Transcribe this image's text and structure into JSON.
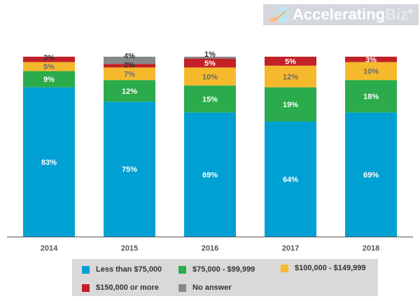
{
  "logo": {
    "text": "Accelerating",
    "text2": "Biz",
    "mark": "®"
  },
  "chart_data": {
    "type": "bar",
    "stacked": true,
    "categories": [
      "2014",
      "2015",
      "2016",
      "2017",
      "2018"
    ],
    "ylim": [
      0,
      100
    ],
    "grid": false,
    "legend_position": "bottom",
    "series": [
      {
        "name": "Less than $75,000",
        "color": "#00a0d2",
        "label_color": "#ffffff",
        "values": [
          83,
          75,
          69,
          64,
          69
        ]
      },
      {
        "name": "$75,000 - $99,999",
        "color": "#2bab4b",
        "label_color": "#ffffff",
        "values": [
          9,
          12,
          15,
          19,
          18
        ]
      },
      {
        "name": "$100,000 - $149,999",
        "color": "#f7b92c",
        "label_color": "#6b6b6b",
        "values": [
          5,
          7,
          10,
          12,
          10
        ]
      },
      {
        "name": "$150,000 or more",
        "color": "#c12127",
        "label_color": "#ffffff",
        "values": [
          3,
          2,
          5,
          5,
          3
        ]
      },
      {
        "name": "No answer",
        "color": "#888888",
        "label_color": "#ffffff",
        "values": [
          0,
          4,
          1,
          0,
          0
        ]
      }
    ]
  }
}
